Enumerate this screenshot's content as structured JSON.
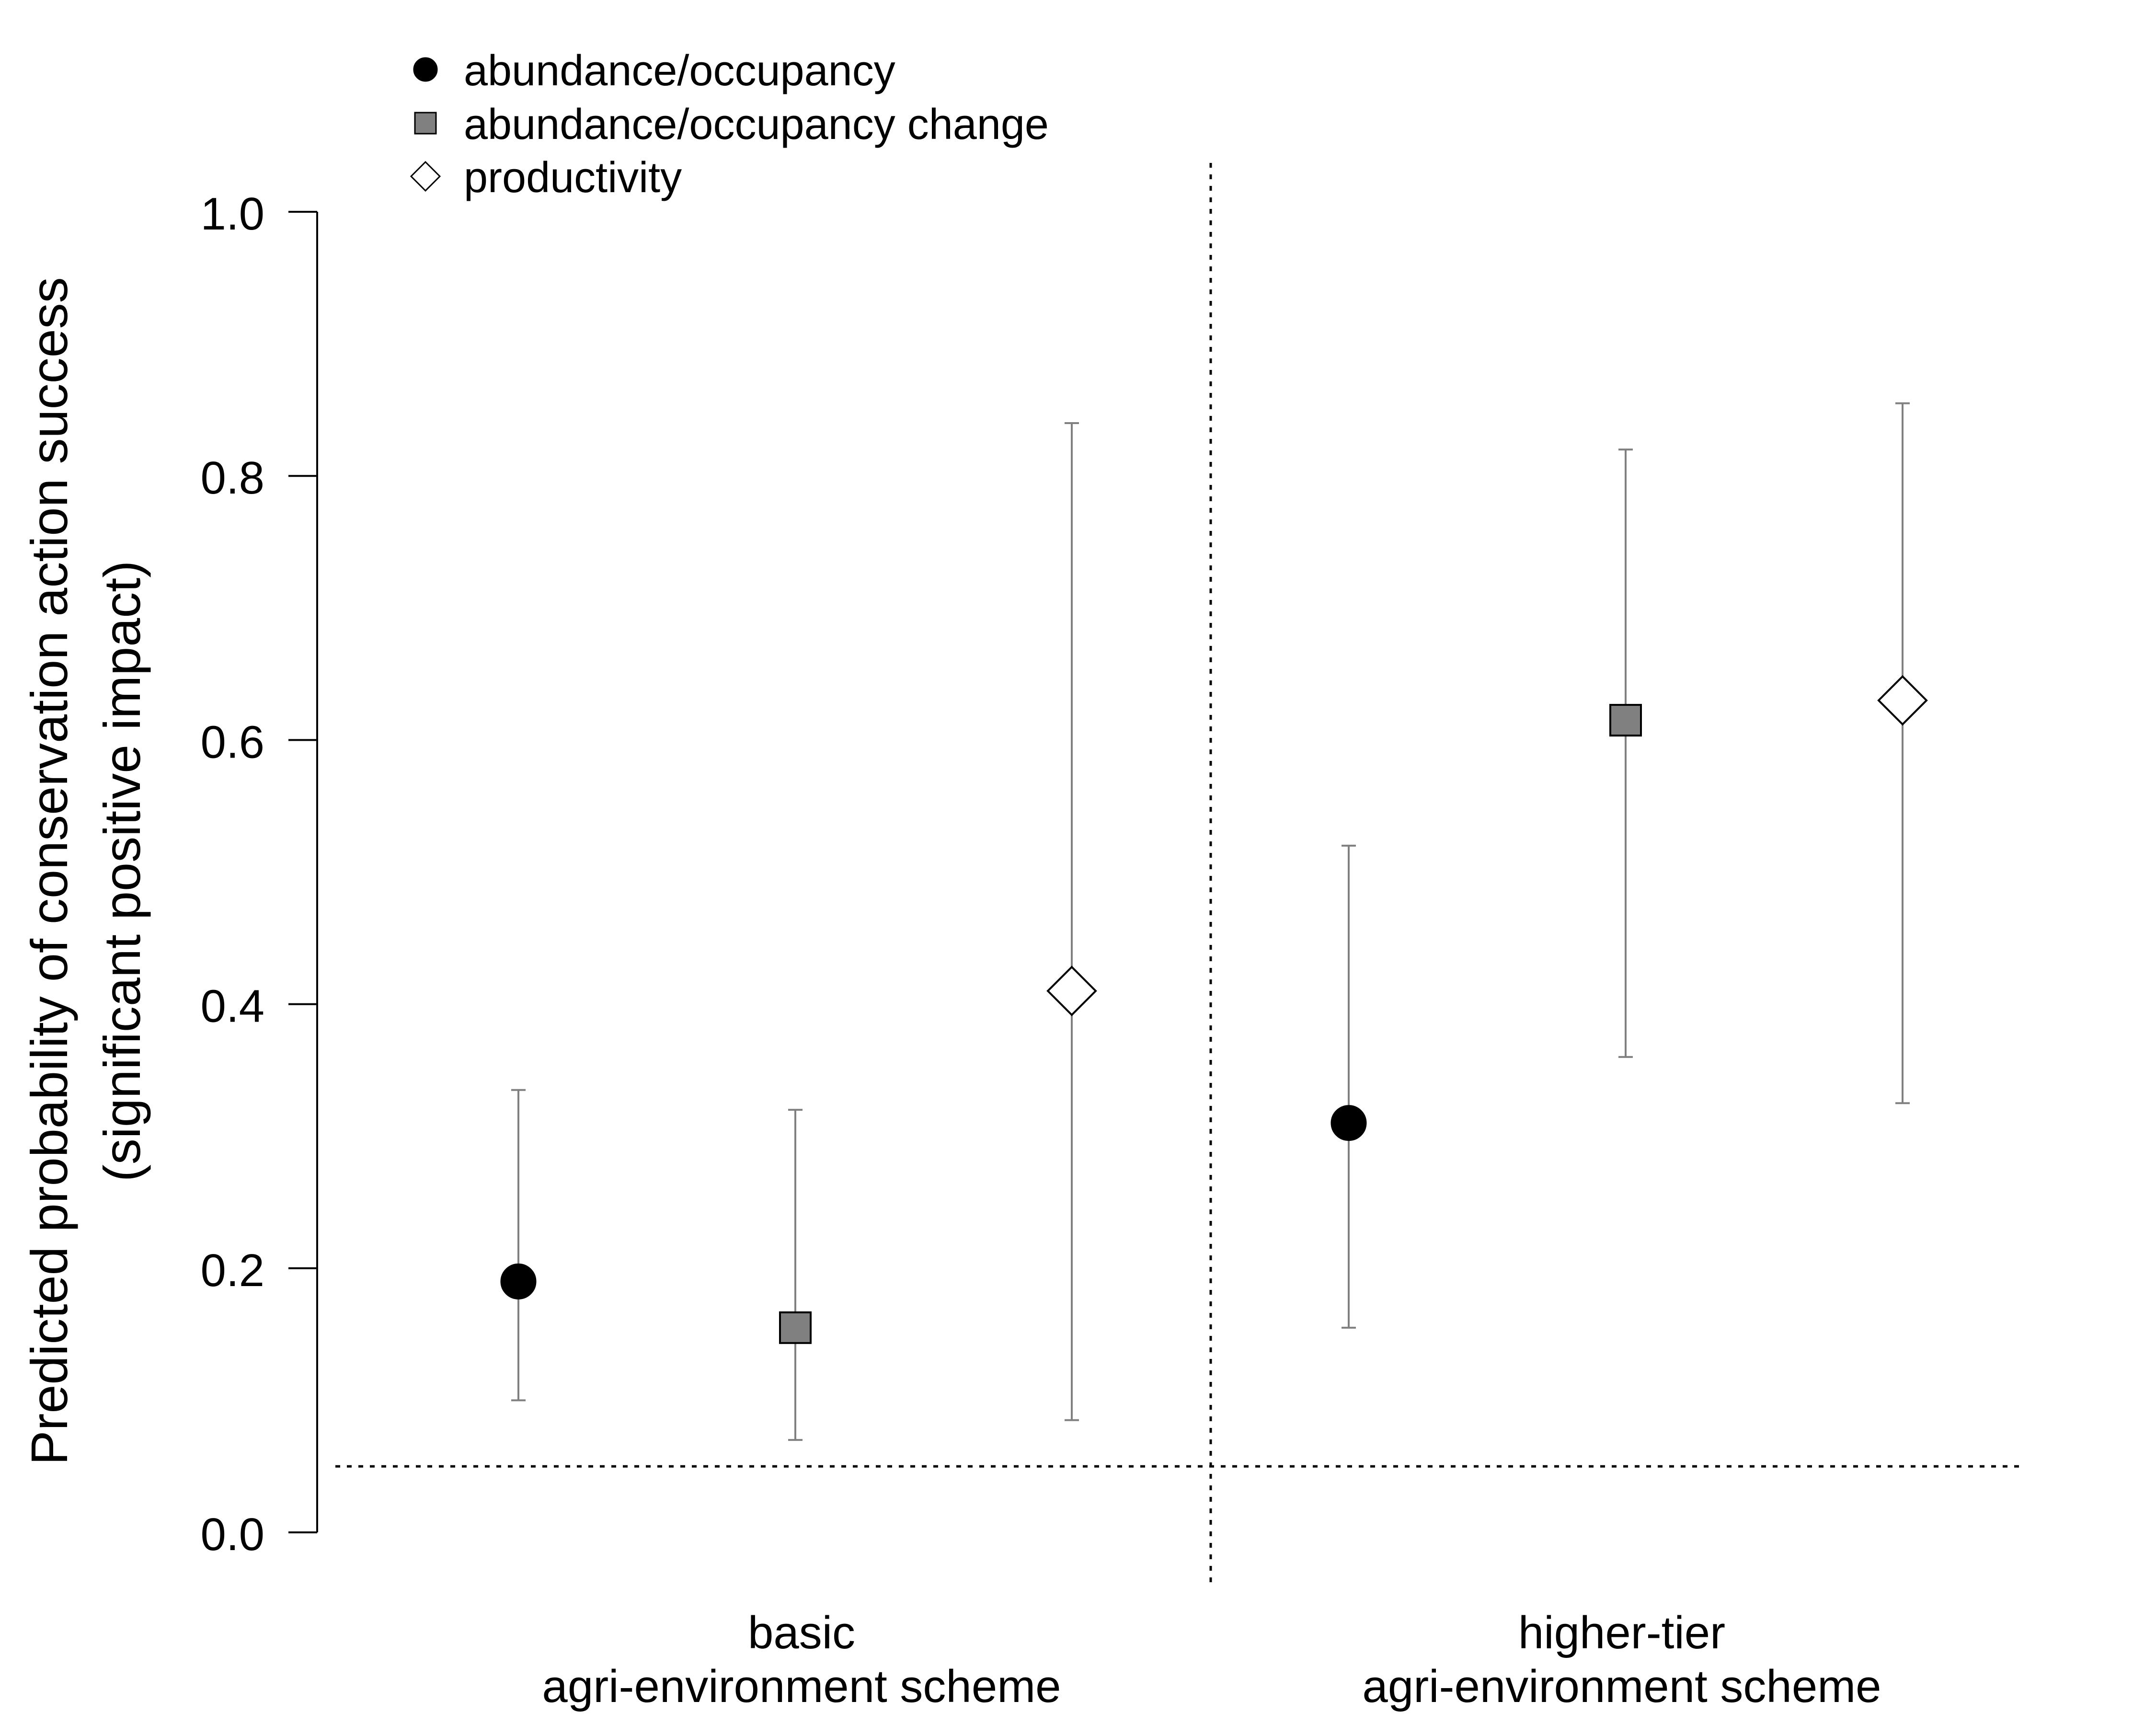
{
  "chart_data": {
    "type": "scatter",
    "subtype": "point-and-error-bar",
    "ylabel": "Predicted probability of conservation action success",
    "ylabel_line2": "(significant positive impact)",
    "ylim": [
      0.0,
      1.0
    ],
    "yticks": [
      "0.0",
      "0.2",
      "0.4",
      "0.6",
      "0.8",
      "1.0"
    ],
    "reference_line_y": 0.05,
    "groups": [
      {
        "label_line1": "basic",
        "label_line2": "agri-environment scheme"
      },
      {
        "label_line1": "higher-tier",
        "label_line2": "agri-environment scheme"
      }
    ],
    "series": [
      {
        "name": "abundance/occupancy",
        "marker": "circle",
        "fill": "#000000",
        "points": [
          {
            "group": "basic agri-environment scheme",
            "value": 0.19,
            "lower": 0.1,
            "upper": 0.335
          },
          {
            "group": "higher-tier agri-environment scheme",
            "value": 0.31,
            "lower": 0.155,
            "upper": 0.52
          }
        ]
      },
      {
        "name": "abundance/occupancy change",
        "marker": "square",
        "fill": "#808080",
        "points": [
          {
            "group": "basic agri-environment scheme",
            "value": 0.155,
            "lower": 0.07,
            "upper": 0.32
          },
          {
            "group": "higher-tier agri-environment scheme",
            "value": 0.615,
            "lower": 0.36,
            "upper": 0.82
          }
        ]
      },
      {
        "name": "productivity",
        "marker": "diamond",
        "fill": "#ffffff",
        "points": [
          {
            "group": "basic agri-environment scheme",
            "value": 0.41,
            "lower": 0.085,
            "upper": 0.84
          },
          {
            "group": "higher-tier agri-environment scheme",
            "value": 0.63,
            "lower": 0.325,
            "upper": 0.855
          }
        ]
      }
    ],
    "legend_position": "top-left",
    "grid": false,
    "colors": {
      "axis": "#000000",
      "errorbar": "#808080",
      "reference": "#000000"
    }
  }
}
